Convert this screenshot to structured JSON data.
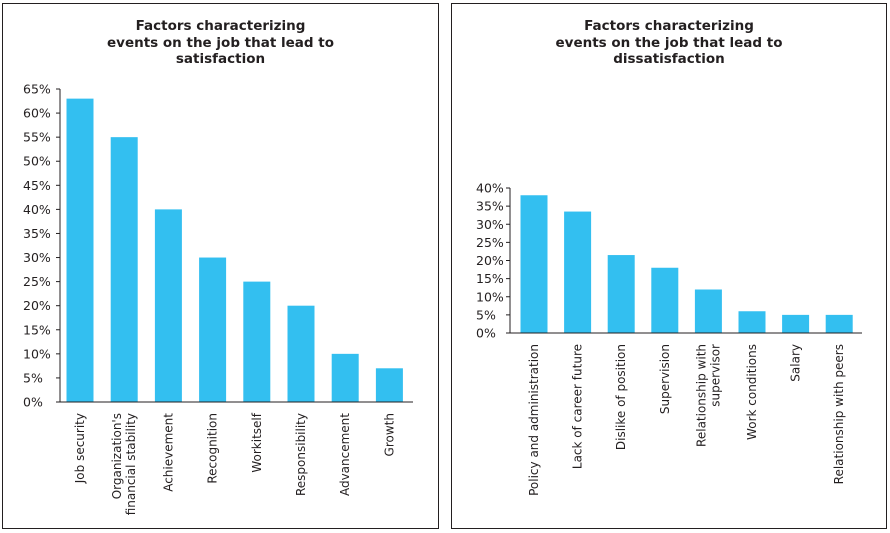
{
  "chart_data": [
    {
      "type": "bar",
      "title_lines": [
        "Factors characterizing",
        "events on the job that lead to",
        "satisfaction"
      ],
      "categories": [
        [
          "Job security"
        ],
        [
          "Organization's",
          "financial stability"
        ],
        [
          "Achievement"
        ],
        [
          "Recognition"
        ],
        [
          "Workitself"
        ],
        [
          "Responsibility"
        ],
        [
          "Advancement"
        ],
        [
          "Growth"
        ]
      ],
      "values": [
        63,
        55,
        40,
        30,
        25,
        20,
        10,
        7
      ],
      "ylim": [
        0,
        65
      ],
      "yticks": [
        "0%",
        "5%",
        "10%",
        "15%",
        "20%",
        "25%",
        "30%",
        "35%",
        "40%",
        "45%",
        "50%",
        "55%",
        "60%",
        "65%"
      ],
      "grid": false,
      "bar_color": "#33bff0"
    },
    {
      "type": "bar",
      "title_lines": [
        "Factors characterizing",
        "events on the job that lead to",
        "dissatisfaction"
      ],
      "categories": [
        [
          "Policy and administration"
        ],
        [
          "Lack of career future"
        ],
        [
          "Dislike of position"
        ],
        [
          "Supervision"
        ],
        [
          "Relationship with",
          "supervisor"
        ],
        [
          "Work conditions"
        ],
        [
          "Salary"
        ],
        [
          "Relationship with peers"
        ]
      ],
      "values": [
        38,
        33.5,
        21.5,
        18,
        12,
        6,
        5,
        5
      ],
      "ylim": [
        0,
        40
      ],
      "yticks": [
        "0%",
        "5%",
        "10%",
        "15%",
        "20%",
        "25%",
        "30%",
        "35%",
        "40%"
      ],
      "grid": false,
      "bar_color": "#33bff0"
    }
  ]
}
